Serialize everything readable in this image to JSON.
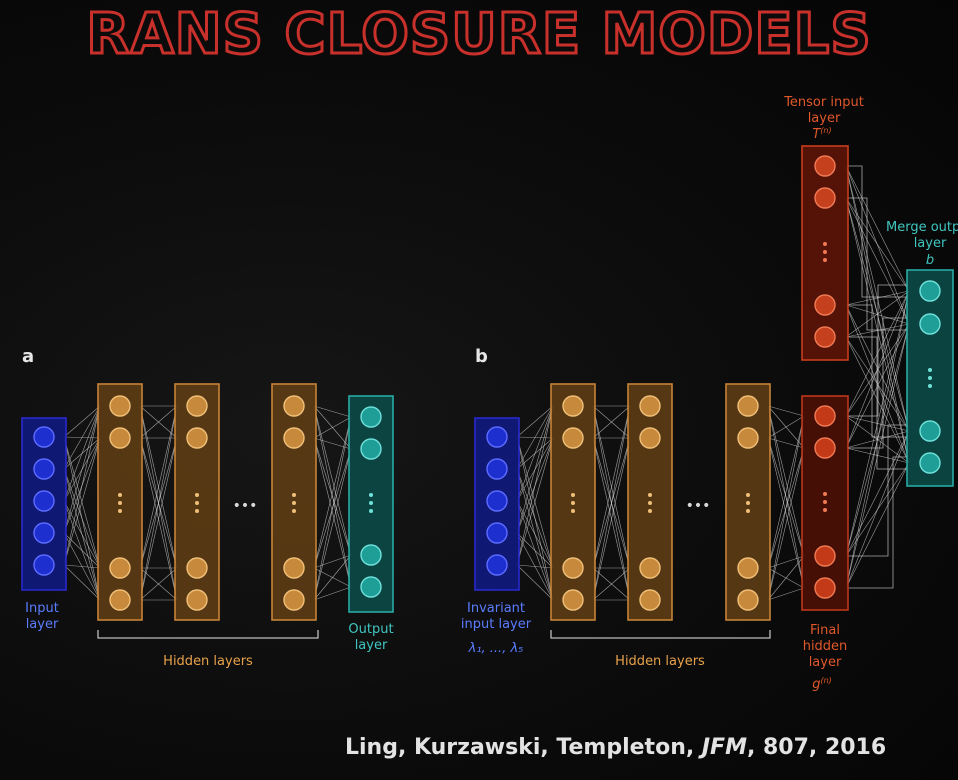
{
  "title": "RANS CLOSURE MODELS",
  "panel_a": {
    "letter": "a",
    "input_label_1": "Input",
    "input_label_2": "layer",
    "hidden_label": "Hidden layers",
    "output_label_1": "Output",
    "output_label_2": "layer",
    "ellipsis": "•••"
  },
  "panel_b": {
    "letter": "b",
    "input_label_1": "Invariant",
    "input_label_2": "input layer",
    "input_symbol": "λ₁, ..., λ₅",
    "hidden_label": "Hidden layers",
    "final_label_1": "Final",
    "final_label_2": "hidden",
    "final_label_3": "layer",
    "final_symbol": "g",
    "final_symbol_sup": "(n)",
    "tensor_label_1": "Tensor input",
    "tensor_label_2": "layer",
    "tensor_symbol": "T",
    "tensor_symbol_sup": "(n)",
    "merge_label_1": "Merge output",
    "merge_label_2": "layer",
    "merge_symbol": "b",
    "ellipsis": "•••"
  },
  "citation": {
    "authors": "Ling, Kurzawski, Templeton, ",
    "journal": "JFM",
    "rest": ", 807, 2016"
  },
  "colors": {
    "title_outline": "#c8312b",
    "input_blue": "#2a2ad8",
    "hidden_orange": "#d18a3a",
    "output_teal": "#2bb3ad",
    "tensor_red": "#d4401e",
    "final_red": "#c83a1c"
  }
}
